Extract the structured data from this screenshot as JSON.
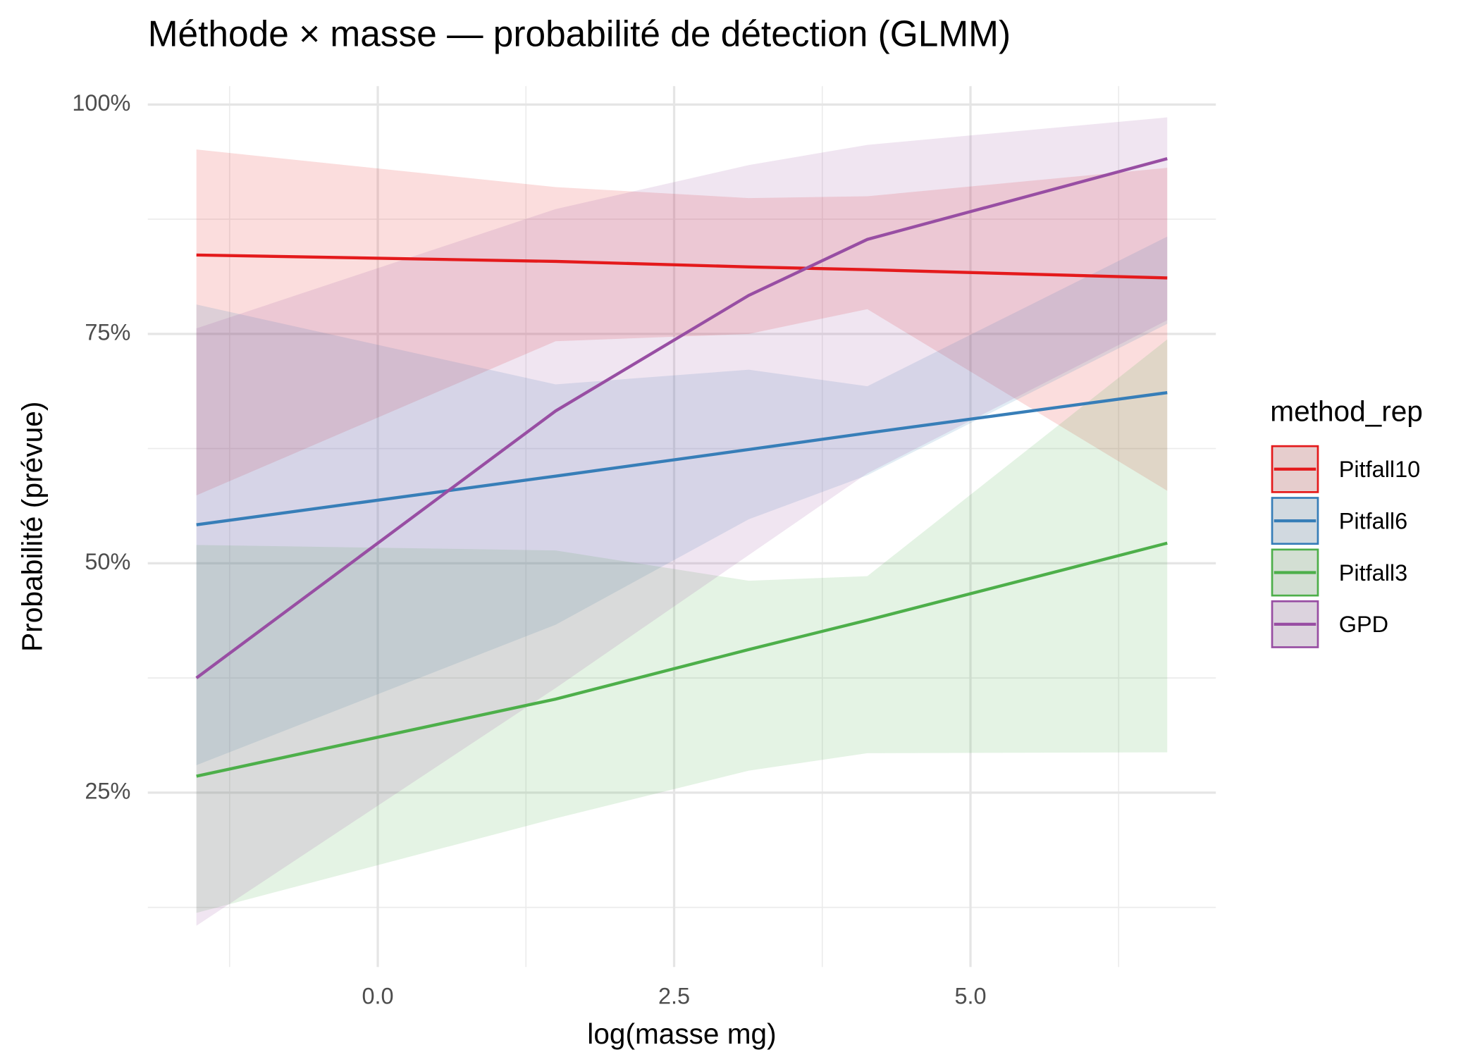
{
  "chart_data": {
    "type": "line-ribbon",
    "title": "Méthode × masse — probabilité de détection (GLMM)",
    "x_label": "log(masse mg)",
    "y_label": "Probabilité (prévue)",
    "legend_title": "method_rep",
    "x": [
      -1.53,
      1.5,
      3.13,
      4.13,
      6.66
    ],
    "series": [
      {
        "name": "Pitfall10",
        "color": "#e41a1c",
        "values": [
          83.6,
          82.9,
          82.3,
          82.0,
          81.1
        ],
        "lower": [
          57.4,
          74.2,
          75.0,
          77.7,
          57.9
        ],
        "upper": [
          95.1,
          91.0,
          89.8,
          90.0,
          93.1
        ]
      },
      {
        "name": "Pitfall6",
        "color": "#377eb8",
        "values": [
          54.2,
          59.5,
          62.4,
          64.2,
          68.6
        ],
        "lower": [
          28.0,
          43.3,
          54.8,
          59.6,
          76.1
        ],
        "upper": [
          78.2,
          69.5,
          71.1,
          69.3,
          85.6
        ]
      },
      {
        "name": "Pitfall3",
        "color": "#4daf4a",
        "values": [
          26.8,
          35.2,
          40.6,
          43.8,
          52.2
        ],
        "lower": [
          11.9,
          22.2,
          27.4,
          29.3,
          29.4
        ],
        "upper": [
          52.0,
          51.4,
          48.1,
          48.6,
          74.4
        ]
      },
      {
        "name": "GPD",
        "color": "#984ea3",
        "values": [
          37.5,
          66.6,
          79.2,
          85.3,
          94.1
        ],
        "lower": [
          10.5,
          36.4,
          50.9,
          59.8,
          76.5
        ],
        "upper": [
          75.6,
          88.6,
          93.4,
          95.6,
          98.6
        ]
      }
    ],
    "xlim": [
      -1.94,
      7.07
    ],
    "ylim": [
      6,
      102
    ],
    "xticks": [
      {
        "value": 0,
        "label": "0.0"
      },
      2.5,
      {
        "value": 5,
        "label": "5.0"
      }
    ],
    "yticks": [
      {
        "value": 25,
        "label": "25%"
      },
      {
        "value": 50,
        "label": "50%"
      },
      {
        "value": 75,
        "label": "75%"
      },
      {
        "value": 100,
        "label": "100%"
      }
    ],
    "xminor": [
      -1.25,
      1.25,
      3.75,
      6.25
    ],
    "yminor": [
      12.5,
      37.5,
      62.5,
      87.5
    ],
    "grid": true,
    "legend_position": "right"
  }
}
